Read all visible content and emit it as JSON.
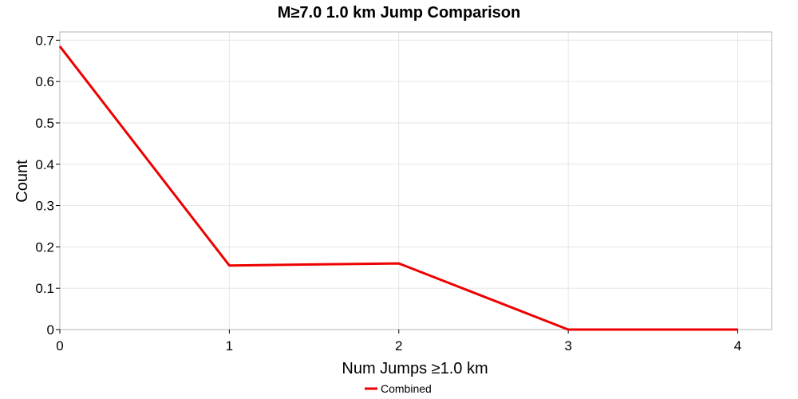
{
  "chart_data": {
    "type": "line",
    "title": "M≥7.0 1.0 km Jump Comparison",
    "xlabel": "Num Jumps ≥1.0 km",
    "ylabel": "Count",
    "xlim": [
      0,
      4.2
    ],
    "ylim": [
      0,
      0.72
    ],
    "x_ticks": [
      "0",
      "1",
      "2",
      "3",
      "4"
    ],
    "y_ticks": [
      "0",
      "0.1",
      "0.2",
      "0.3",
      "0.4",
      "0.5",
      "0.6",
      "0.7"
    ],
    "grid": true,
    "legend_position": "bottom-center",
    "series": [
      {
        "name": "Combined",
        "color": "#ee0000",
        "x": [
          0,
          1,
          2,
          3,
          4
        ],
        "y": [
          0.685,
          0.155,
          0.16,
          0.0,
          0.0
        ]
      }
    ]
  }
}
